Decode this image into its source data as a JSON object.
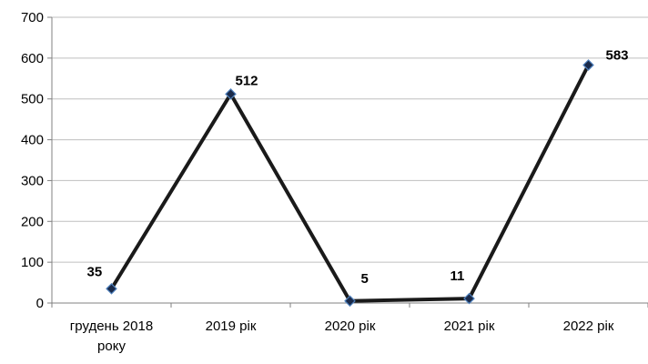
{
  "chart_data": {
    "type": "line",
    "categories": [
      "грудень 2018 року",
      "2019 рік",
      "2020 рік",
      "2021 рік",
      "2022 рік"
    ],
    "category_lines": [
      [
        "грудень 2018",
        "року"
      ],
      [
        "2019 рік"
      ],
      [
        "2020 рік"
      ],
      [
        "2021 рік"
      ],
      [
        "2022 рік"
      ]
    ],
    "values": [
      35,
      512,
      5,
      11,
      583
    ],
    "data_labels": [
      "35",
      "512",
      "5",
      "11",
      "583"
    ],
    "y_ticks": [
      0,
      100,
      200,
      300,
      400,
      500,
      600,
      700
    ],
    "ylim": [
      0,
      700
    ],
    "grid": true,
    "legend": "none",
    "title": "",
    "xlabel": "",
    "ylabel": "",
    "colors": {
      "line": "#1a1a1a",
      "marker_fill": "#1a2a4a",
      "marker_edge": "#4f81bd",
      "grid": "#bfbfbf",
      "axis": "#808080"
    }
  }
}
